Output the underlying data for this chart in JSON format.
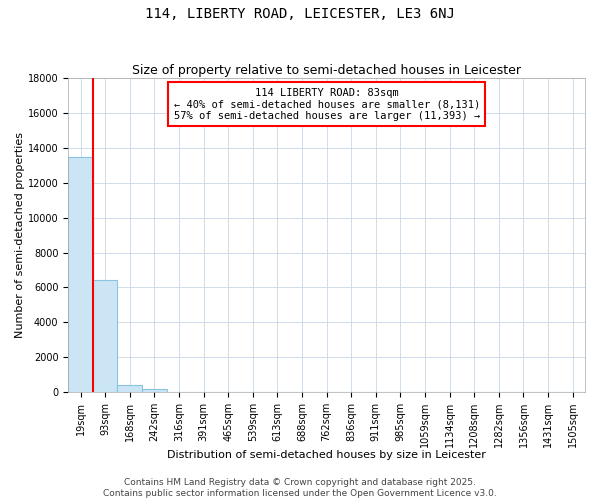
{
  "title": "114, LIBERTY ROAD, LEICESTER, LE3 6NJ",
  "subtitle": "Size of property relative to semi-detached houses in Leicester",
  "xlabel": "Distribution of semi-detached houses by size in Leicester",
  "ylabel": "Number of semi-detached properties",
  "footnote1": "Contains HM Land Registry data © Crown copyright and database right 2025.",
  "footnote2": "Contains public sector information licensed under the Open Government Licence v3.0.",
  "annotation_title": "114 LIBERTY ROAD: 83sqm",
  "annotation_line1": "← 40% of semi-detached houses are smaller (8,131)",
  "annotation_line2": "57% of semi-detached houses are larger (11,393) →",
  "bin_labels": [
    "19sqm",
    "93sqm",
    "168sqm",
    "242sqm",
    "316sqm",
    "391sqm",
    "465sqm",
    "539sqm",
    "613sqm",
    "688sqm",
    "762sqm",
    "836sqm",
    "911sqm",
    "985sqm",
    "1059sqm",
    "1134sqm",
    "1208sqm",
    "1282sqm",
    "1356sqm",
    "1431sqm",
    "1505sqm"
  ],
  "bin_values": [
    13500,
    6400,
    400,
    150,
    0,
    0,
    0,
    0,
    0,
    0,
    0,
    0,
    0,
    0,
    0,
    0,
    0,
    0,
    0,
    0,
    0
  ],
  "bar_color": "#cce5f5",
  "bar_edge_color": "#8ac4e0",
  "red_line_bin": 0,
  "ylim": [
    0,
    18000
  ],
  "yticks": [
    0,
    2000,
    4000,
    6000,
    8000,
    10000,
    12000,
    14000,
    16000,
    18000
  ],
  "grid_color": "#c8d8e8",
  "background_color": "#ffffff",
  "plot_bg_color": "#ffffff",
  "title_fontsize": 10,
  "subtitle_fontsize": 9,
  "axis_label_fontsize": 8,
  "tick_fontsize": 7,
  "annotation_fontsize": 7.5,
  "footnote_fontsize": 6.5
}
